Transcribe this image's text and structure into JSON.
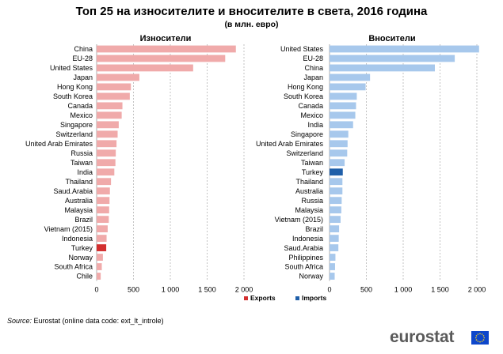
{
  "title": "Топ 25 на износителите и вносителите в света, 2016 година",
  "subtitle": "(в млн. евро)",
  "source_label": "Source:",
  "source_text": "Eurostat (online data code: ext_lt_introle)",
  "logo_text": "eurostat",
  "colors": {
    "exports": "#f0aaaa",
    "exports_highlight": "#d32f2f",
    "imports": "#a7c8ec",
    "imports_highlight": "#1f5fa9",
    "logo_flag": "#0e47cb"
  },
  "chart_data": {
    "type": "bar",
    "orientation": "horizontal",
    "highlight_category": "Turkey",
    "legend": [
      "Exports",
      "Imports"
    ],
    "legend_position": "bottom",
    "grid": true,
    "panels": [
      {
        "title": "Износители",
        "series": "Exports",
        "categories": [
          "China",
          "EU-28",
          "United States",
          "Japan",
          "Hong Kong",
          "South Korea",
          "Canada",
          "Mexico",
          "Singapore",
          "Switzerland",
          "United Arab Emirates",
          "Russia",
          "Taiwan",
          "India",
          "Thailand",
          "Saud.Arabia",
          "Australia",
          "Malaysia",
          "Brazil",
          "Vietnam (2015)",
          "Indonesia",
          "Turkey",
          "Norway",
          "South Africa",
          "Chile"
        ],
        "values": [
          1890,
          1745,
          1310,
          580,
          465,
          450,
          350,
          340,
          300,
          285,
          270,
          260,
          255,
          240,
          195,
          180,
          175,
          170,
          165,
          150,
          135,
          130,
          85,
          70,
          55
        ],
        "xlim": [
          0,
          2000
        ],
        "xticks": [
          "0",
          "500",
          "1 000",
          "1 500",
          "2 000"
        ]
      },
      {
        "title": "Вносители",
        "series": "Imports",
        "categories": [
          "United States",
          "EU-28",
          "China",
          "Japan",
          "Hong Kong",
          "South Korea",
          "Canada",
          "Mexico",
          "India",
          "Singapore",
          "United Arab Emirates",
          "Switzerland",
          "Taiwan",
          "Turkey",
          "Thailand",
          "Australia",
          "Russia",
          "Malaysia",
          "Vietnam (2015)",
          "Brazil",
          "Indonesia",
          "Saud.Arabia",
          "Philippines",
          "South Africa",
          "Norway"
        ],
        "values": [
          2030,
          1700,
          1430,
          550,
          490,
          370,
          360,
          350,
          320,
          255,
          245,
          240,
          205,
          180,
          175,
          175,
          165,
          160,
          150,
          130,
          125,
          120,
          80,
          75,
          70
        ],
        "xlim": [
          0,
          2000
        ],
        "xticks": [
          "0",
          "500",
          "1 000",
          "1 500",
          "2 000"
        ]
      }
    ]
  }
}
